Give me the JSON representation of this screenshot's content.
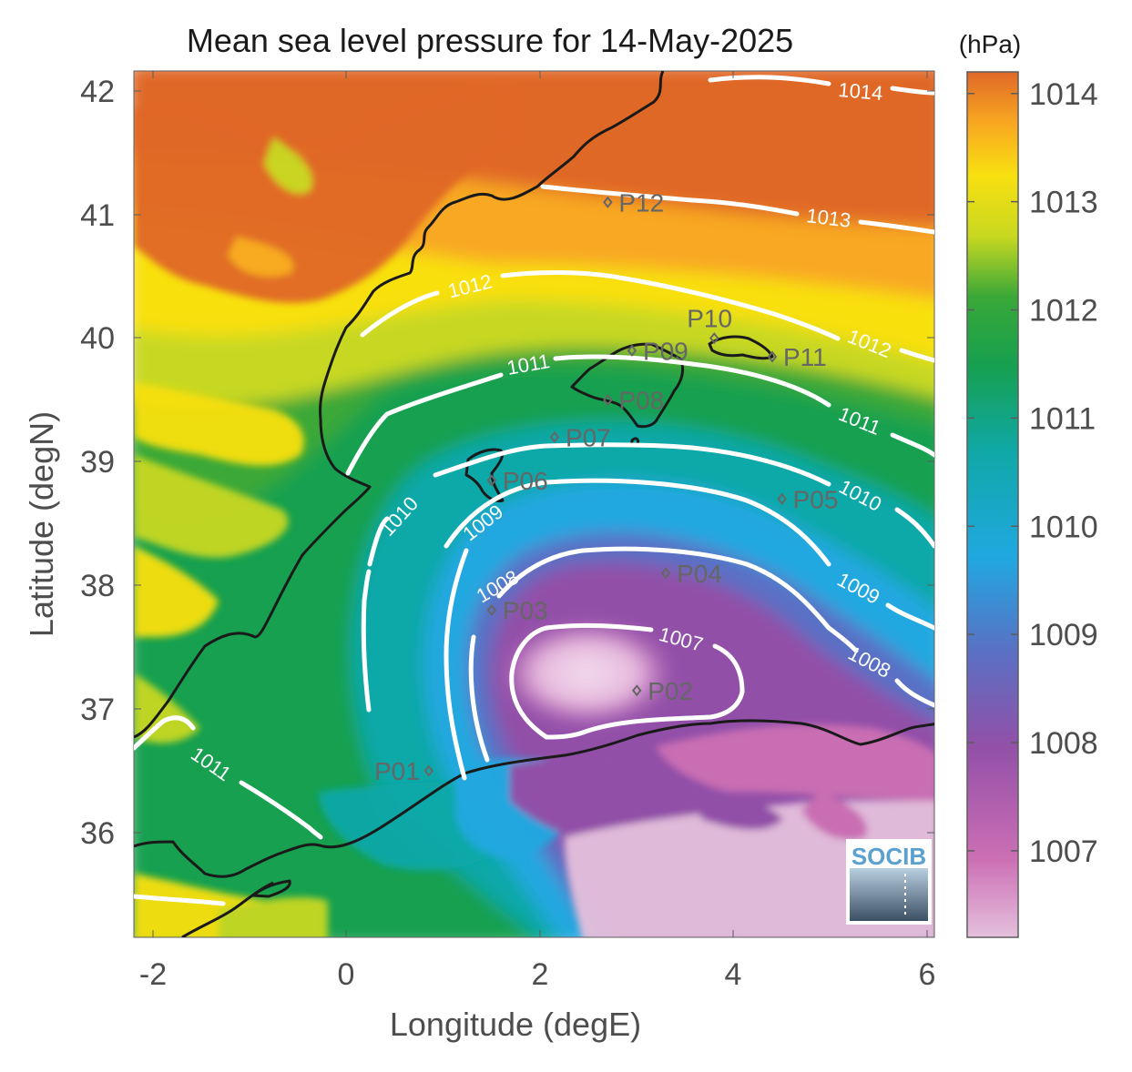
{
  "title": "Mean sea level pressure for 14-May-2025",
  "xlabel": "Longitude (degE)",
  "ylabel": "Latitude (degN)",
  "colorbar": {
    "unit": "(hPa)",
    "ticks": [
      "1014",
      "1013",
      "1012",
      "1011",
      "1010",
      "1009",
      "1008",
      "1007"
    ],
    "tick_values": [
      1014,
      1013,
      1012,
      1011,
      1010,
      1009,
      1008,
      1007
    ],
    "range": [
      1006.2,
      1014.2
    ],
    "colors": [
      "#e4c0dc",
      "#cc6fb4",
      "#9250a8",
      "#5a70c4",
      "#20a8e0",
      "#10a8a8",
      "#16a050",
      "#3aa838",
      "#c8d820",
      "#f8e010",
      "#f8a820",
      "#e06828"
    ]
  },
  "x_ticks": [
    "-2",
    "0",
    "2",
    "4",
    "6"
  ],
  "y_ticks": [
    "42",
    "41",
    "40",
    "39",
    "38",
    "37",
    "36"
  ],
  "logo": {
    "text": "SOCIB"
  },
  "points": [
    {
      "label": "P01",
      "lon": 0.85,
      "lat": 36.5
    },
    {
      "label": "P02",
      "lon": 3.0,
      "lat": 37.15
    },
    {
      "label": "P03",
      "lon": 1.5,
      "lat": 37.8
    },
    {
      "label": "P04",
      "lon": 3.3,
      "lat": 38.1
    },
    {
      "label": "P05",
      "lon": 4.5,
      "lat": 38.7
    },
    {
      "label": "P06",
      "lon": 1.5,
      "lat": 38.85
    },
    {
      "label": "P07",
      "lon": 2.15,
      "lat": 39.2
    },
    {
      "label": "P08",
      "lon": 2.7,
      "lat": 39.5
    },
    {
      "label": "P09",
      "lon": 2.95,
      "lat": 39.9
    },
    {
      "label": "P10",
      "lon": 3.8,
      "lat": 40.0
    },
    {
      "label": "P11",
      "lon": 4.4,
      "lat": 39.85
    },
    {
      "label": "P12",
      "lon": 2.7,
      "lat": 41.1
    }
  ],
  "contours": [
    {
      "label": "1014"
    },
    {
      "label": "1013"
    },
    {
      "label": "1012"
    },
    {
      "label": "1012"
    },
    {
      "label": "1011"
    },
    {
      "label": "1011"
    },
    {
      "label": "1011"
    },
    {
      "label": "1010"
    },
    {
      "label": "1010"
    },
    {
      "label": "1009"
    },
    {
      "label": "1009"
    },
    {
      "label": "1008"
    },
    {
      "label": "1008"
    },
    {
      "label": "1007"
    }
  ]
}
